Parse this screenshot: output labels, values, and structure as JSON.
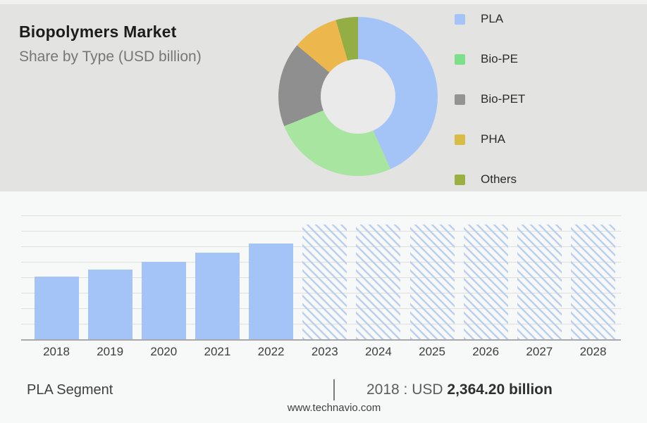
{
  "header": {
    "title": "Biopolymers Market",
    "subtitle": "Share by Type (USD billion)"
  },
  "colors": {
    "header_bg": "#e3e3e2",
    "body_bg": "#f7f8f8",
    "donut_hole": "#e9eae9",
    "bar_fill": "#a4c3f7",
    "hatch_line": "#bcd0ee",
    "gridline": "#dfdfdf",
    "axis_line": "#a9a9a9"
  },
  "chart_data": [
    {
      "type": "pie",
      "donut": true,
      "title": "Share by Type (USD billion)",
      "legend_position": "right",
      "start_angle_deg": 0,
      "slices": [
        {
          "label": "PLA",
          "share_percent": 43.3,
          "color": "#a4c3f7",
          "legend_color": "#a4c3f7"
        },
        {
          "label": "Bio-PE",
          "share_percent": 25.6,
          "color": "#a7e5a0",
          "legend_color": "#7ce08b"
        },
        {
          "label": "Bio-PET",
          "share_percent": 17.2,
          "color": "#8f8f8f",
          "legend_color": "#949494"
        },
        {
          "label": "PHA",
          "share_percent": 9.4,
          "color": "#ecb84e",
          "legend_color": "#d9bc45"
        },
        {
          "label": "Others",
          "share_percent": 4.5,
          "color": "#93ae45",
          "legend_color": "#9ab043"
        }
      ]
    },
    {
      "type": "bar",
      "title": "PLA Segment",
      "xlabel": "",
      "ylabel": "",
      "categories": [
        "2018",
        "2019",
        "2020",
        "2021",
        "2022",
        "2023",
        "2024",
        "2025",
        "2026",
        "2027",
        "2028"
      ],
      "values_usd_billion_estimated": [
        2364.2,
        2630,
        2920,
        3265,
        3610,
        null,
        null,
        null,
        null,
        null,
        null
      ],
      "bar_height_fractions": [
        0.506,
        0.563,
        0.625,
        0.699,
        0.773,
        0.926,
        0.926,
        0.926,
        0.926,
        0.926,
        0.926
      ],
      "historical_years": 5,
      "forecast_style": "hatched",
      "gridlines": 9,
      "y_axis_labels_shown": false
    }
  ],
  "footer": {
    "segment_label": "PLA Segment",
    "separator": "|",
    "value_prefix": "2018 : USD ",
    "value_bold": "2,364.20 billion",
    "website": "www.technavio.com"
  }
}
